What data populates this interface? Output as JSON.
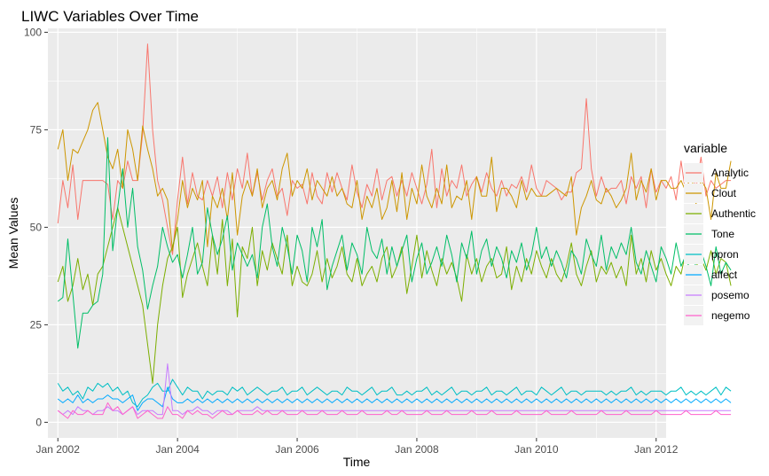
{
  "chart_data": {
    "type": "line",
    "title": "LIWC Variables Over Time",
    "xlabel": "Time",
    "ylabel": "Mean Values",
    "x_start": "2002-01",
    "x_end": "2011-12",
    "frequency": "monthly",
    "xlim": [
      "2001-11",
      "2012-03"
    ],
    "ylim": [
      -4,
      101
    ],
    "x_ticks": [
      {
        "date": "2002-01",
        "label": "Jan 2002"
      },
      {
        "date": "2004-01",
        "label": "Jan 2004"
      },
      {
        "date": "2006-01",
        "label": "Jan 2006"
      },
      {
        "date": "2008-01",
        "label": "Jan 2008"
      },
      {
        "date": "2010-01",
        "label": "Jan 2010"
      },
      {
        "date": "2012-01",
        "label": "Jan 2012"
      }
    ],
    "y_ticks": [
      0,
      25,
      50,
      75,
      100
    ],
    "grid": true,
    "legend_position": "right",
    "legend_title": "variable",
    "series": [
      {
        "name": "Analytic",
        "color": "#F8766D",
        "values": [
          51,
          62,
          55,
          66,
          52,
          62,
          62,
          62,
          62,
          62,
          61,
          52,
          62,
          60,
          67,
          62,
          62,
          74,
          97,
          75,
          62,
          57,
          50,
          43,
          57,
          68,
          56,
          64,
          58,
          57,
          62,
          58,
          63,
          55,
          64,
          57,
          65,
          60,
          69,
          58,
          64,
          57,
          62,
          65,
          58,
          60,
          53,
          62,
          60,
          61,
          56,
          64,
          58,
          56,
          64,
          59,
          64,
          60,
          57,
          66,
          59,
          55,
          61,
          58,
          65,
          57,
          62,
          63,
          58,
          62,
          58,
          64,
          60,
          56,
          61,
          70,
          55,
          65,
          58,
          62,
          60,
          66,
          58,
          61,
          63,
          59,
          64,
          60,
          58,
          62,
          58,
          61,
          60,
          63,
          59,
          66,
          60,
          58,
          62,
          61,
          60,
          57,
          59,
          59,
          64,
          65,
          83,
          65,
          58,
          63,
          59,
          60,
          60,
          62,
          56,
          63,
          60,
          63,
          55,
          65,
          59,
          62,
          60,
          63,
          57,
          67,
          58,
          65,
          60,
          68,
          58,
          62,
          60,
          61,
          62,
          62
        ]
      },
      {
        "name": "Clout",
        "color": "#CD9600",
        "values": [
          70,
          75,
          62,
          70,
          69,
          72,
          75,
          80,
          82,
          75,
          68,
          65,
          70,
          60,
          75,
          70,
          62,
          76,
          70,
          65,
          58,
          60,
          57,
          44,
          52,
          62,
          55,
          60,
          57,
          62,
          45,
          58,
          55,
          60,
          52,
          64,
          48,
          58,
          62,
          58,
          65,
          55,
          60,
          62,
          57,
          65,
          69,
          58,
          62,
          60,
          65,
          57,
          62,
          60,
          58,
          63,
          58,
          60,
          56,
          55,
          62,
          52,
          58,
          55,
          60,
          52,
          55,
          62,
          54,
          64,
          52,
          60,
          56,
          66,
          58,
          55,
          60,
          56,
          66,
          55,
          58,
          57,
          62,
          52,
          63,
          58,
          58,
          68,
          54,
          60,
          60,
          58,
          55,
          62,
          57,
          60,
          58,
          58,
          58,
          59,
          60,
          59,
          58,
          63,
          48,
          55,
          58,
          62,
          57,
          56,
          60,
          58,
          55,
          57,
          60,
          69,
          57,
          62,
          59,
          65,
          57,
          62,
          62,
          60,
          60,
          62,
          59,
          64,
          56,
          62,
          60,
          52,
          64,
          60,
          60,
          67
        ]
      },
      {
        "name": "Authentic",
        "color": "#7CAE00",
        "values": [
          36,
          40,
          31,
          35,
          42,
          34,
          38,
          30,
          38,
          40,
          45,
          50,
          55,
          50,
          45,
          40,
          35,
          30,
          20,
          10,
          25,
          35,
          42,
          45,
          50,
          32,
          38,
          42,
          46,
          40,
          35,
          48,
          38,
          52,
          35,
          47,
          27,
          45,
          42,
          50,
          35,
          44,
          39,
          46,
          42,
          38,
          48,
          35,
          40,
          36,
          35,
          38,
          44,
          36,
          42,
          37,
          40,
          45,
          38,
          36,
          42,
          35,
          38,
          40,
          36,
          42,
          45,
          37,
          40,
          45,
          33,
          40,
          48,
          37,
          44,
          39,
          35,
          42,
          38,
          41,
          37,
          31,
          43,
          38,
          42,
          36,
          40,
          42,
          37,
          38,
          45,
          34,
          40,
          36,
          42,
          38,
          44,
          40,
          37,
          42,
          38,
          36,
          40,
          46,
          38,
          35,
          40,
          44,
          36,
          40,
          38,
          41,
          37,
          40,
          35,
          48,
          38,
          42,
          36,
          44,
          39,
          42,
          38,
          35,
          40,
          38,
          44,
          36,
          40,
          42,
          39,
          44,
          38,
          42,
          41,
          35
        ]
      },
      {
        "name": "Tone",
        "color": "#00BE67",
        "values": [
          31,
          32,
          47,
          33,
          19,
          28,
          28,
          30,
          31,
          38,
          73,
          44,
          55,
          65,
          50,
          60,
          45,
          39,
          29,
          35,
          40,
          50,
          45,
          41,
          43,
          37,
          43,
          50,
          38,
          41,
          55,
          48,
          43,
          47,
          53,
          39,
          46,
          43,
          40,
          43,
          37,
          50,
          56,
          45,
          40,
          50,
          45,
          38,
          48,
          44,
          36,
          50,
          45,
          52,
          34,
          40,
          44,
          48,
          39,
          46,
          43,
          38,
          50,
          44,
          42,
          47,
          38,
          45,
          40,
          44,
          48,
          36,
          42,
          46,
          38,
          41,
          45,
          40,
          48,
          43,
          36,
          46,
          42,
          49,
          38,
          44,
          47,
          40,
          45,
          42,
          37,
          44,
          41,
          46,
          39,
          43,
          50,
          42,
          45,
          40,
          44,
          41,
          37,
          44,
          42,
          38,
          47,
          43,
          40,
          48,
          39,
          45,
          42,
          46,
          43,
          50,
          41,
          38,
          44,
          40,
          36,
          45,
          42,
          38,
          46,
          40,
          43,
          37,
          41,
          44,
          40,
          35,
          45,
          38,
          41,
          39
        ]
      },
      {
        "name": "ppron",
        "color": "#00BFC4",
        "values": [
          10,
          8,
          9,
          7,
          8,
          6,
          9,
          8,
          10,
          9,
          10,
          8,
          9,
          7,
          8,
          5,
          4,
          6,
          7,
          9,
          10,
          8,
          8,
          11,
          9,
          7,
          9,
          8,
          8,
          6,
          8,
          7,
          8,
          8,
          7,
          9,
          8,
          9,
          7,
          8,
          9,
          8,
          7,
          8,
          8,
          9,
          7,
          8,
          8,
          9,
          7,
          8,
          9,
          8,
          7,
          8,
          8,
          7,
          9,
          8,
          8,
          7,
          8,
          9,
          7,
          8,
          8,
          9,
          7,
          7,
          8,
          7,
          8,
          8,
          9,
          7,
          8,
          7,
          8,
          9,
          7,
          8,
          8,
          7,
          8,
          8,
          9,
          7,
          8,
          8,
          7,
          8,
          9,
          7,
          8,
          8,
          7,
          9,
          8,
          7,
          8,
          9,
          7,
          8,
          8,
          7,
          8,
          8,
          8,
          8,
          7,
          8,
          7,
          8,
          8,
          9,
          7,
          8,
          7,
          8,
          8,
          8,
          7,
          8,
          8,
          9,
          7,
          8,
          7,
          8,
          7,
          8,
          9,
          7,
          9,
          8
        ]
      },
      {
        "name": "affect",
        "color": "#00A9FF",
        "values": [
          6,
          5,
          6,
          5,
          7,
          5,
          6,
          5,
          6,
          6,
          7,
          6,
          6,
          5,
          6,
          7,
          3,
          5,
          6,
          6,
          5,
          4,
          9,
          6,
          5,
          5,
          6,
          5,
          6,
          5,
          6,
          5,
          6,
          5,
          6,
          5,
          6,
          5,
          6,
          5,
          6,
          5,
          6,
          5,
          6,
          5,
          6,
          5,
          6,
          5,
          6,
          5,
          6,
          5,
          6,
          5,
          6,
          5,
          6,
          5,
          6,
          5,
          6,
          5,
          6,
          5,
          6,
          5,
          6,
          5,
          6,
          5,
          6,
          5,
          6,
          5,
          6,
          5,
          6,
          5,
          6,
          5,
          6,
          5,
          6,
          5,
          6,
          5,
          6,
          5,
          6,
          5,
          6,
          5,
          6,
          5,
          6,
          5,
          6,
          5,
          6,
          5,
          6,
          5,
          6,
          5,
          6,
          5,
          6,
          5,
          6,
          5,
          6,
          5,
          6,
          5,
          6,
          5,
          6,
          5,
          6,
          5,
          6,
          5,
          6,
          5,
          6,
          5,
          6,
          5,
          6,
          5,
          6,
          5,
          6,
          5
        ]
      },
      {
        "name": "posemo",
        "color": "#C77CFF",
        "values": [
          3,
          2,
          3,
          2,
          4,
          3,
          3,
          2,
          3,
          3,
          4,
          3,
          3,
          2,
          3,
          4,
          2,
          3,
          3,
          3,
          2,
          2,
          15,
          3,
          3,
          2,
          3,
          3,
          4,
          3,
          3,
          2,
          3,
          3,
          3,
          2,
          3,
          3,
          3,
          3,
          4,
          3,
          3,
          3,
          3,
          3,
          3,
          3,
          3,
          3,
          3,
          3,
          3,
          3,
          3,
          3,
          3,
          3,
          3,
          3,
          3,
          3,
          3,
          3,
          3,
          3,
          3,
          3,
          3,
          3,
          3,
          3,
          3,
          3,
          3,
          3,
          3,
          3,
          3,
          3,
          3,
          3,
          3,
          3,
          3,
          3,
          3,
          3,
          3,
          3,
          3,
          3,
          3,
          3,
          3,
          3,
          3,
          3,
          3,
          3,
          3,
          3,
          3,
          3,
          3,
          3,
          3,
          3,
          3,
          3,
          3,
          3,
          3,
          3,
          3,
          3,
          3,
          3,
          3,
          3,
          3,
          3,
          3,
          3,
          3,
          3,
          3,
          3,
          3,
          3,
          3,
          3,
          3,
          3,
          3,
          3
        ]
      },
      {
        "name": "negemo",
        "color": "#FF61CC",
        "values": [
          3,
          2,
          1,
          3,
          2,
          2,
          3,
          2,
          2,
          2,
          5,
          3,
          4,
          2,
          3,
          4,
          1,
          2,
          3,
          2,
          1,
          1,
          4,
          2,
          2,
          1,
          3,
          2,
          3,
          2,
          2,
          1,
          2,
          3,
          2,
          2,
          3,
          2,
          2,
          2,
          3,
          2,
          3,
          2,
          2,
          3,
          2,
          2,
          2,
          3,
          2,
          2,
          2,
          3,
          2,
          2,
          2,
          3,
          2,
          2,
          2,
          3,
          2,
          2,
          2,
          2,
          3,
          2,
          2,
          3,
          2,
          2,
          2,
          2,
          3,
          2,
          2,
          2,
          3,
          2,
          2,
          2,
          2,
          3,
          2,
          2,
          2,
          3,
          2,
          2,
          2,
          2,
          3,
          2,
          2,
          2,
          2,
          2,
          3,
          2,
          2,
          2,
          2,
          3,
          2,
          2,
          2,
          2,
          2,
          3,
          2,
          2,
          2,
          2,
          3,
          2,
          2,
          2,
          2,
          2,
          3,
          2,
          2,
          2,
          2,
          2,
          3,
          2,
          2,
          2,
          2,
          2,
          3,
          2,
          2,
          2
        ]
      }
    ]
  }
}
